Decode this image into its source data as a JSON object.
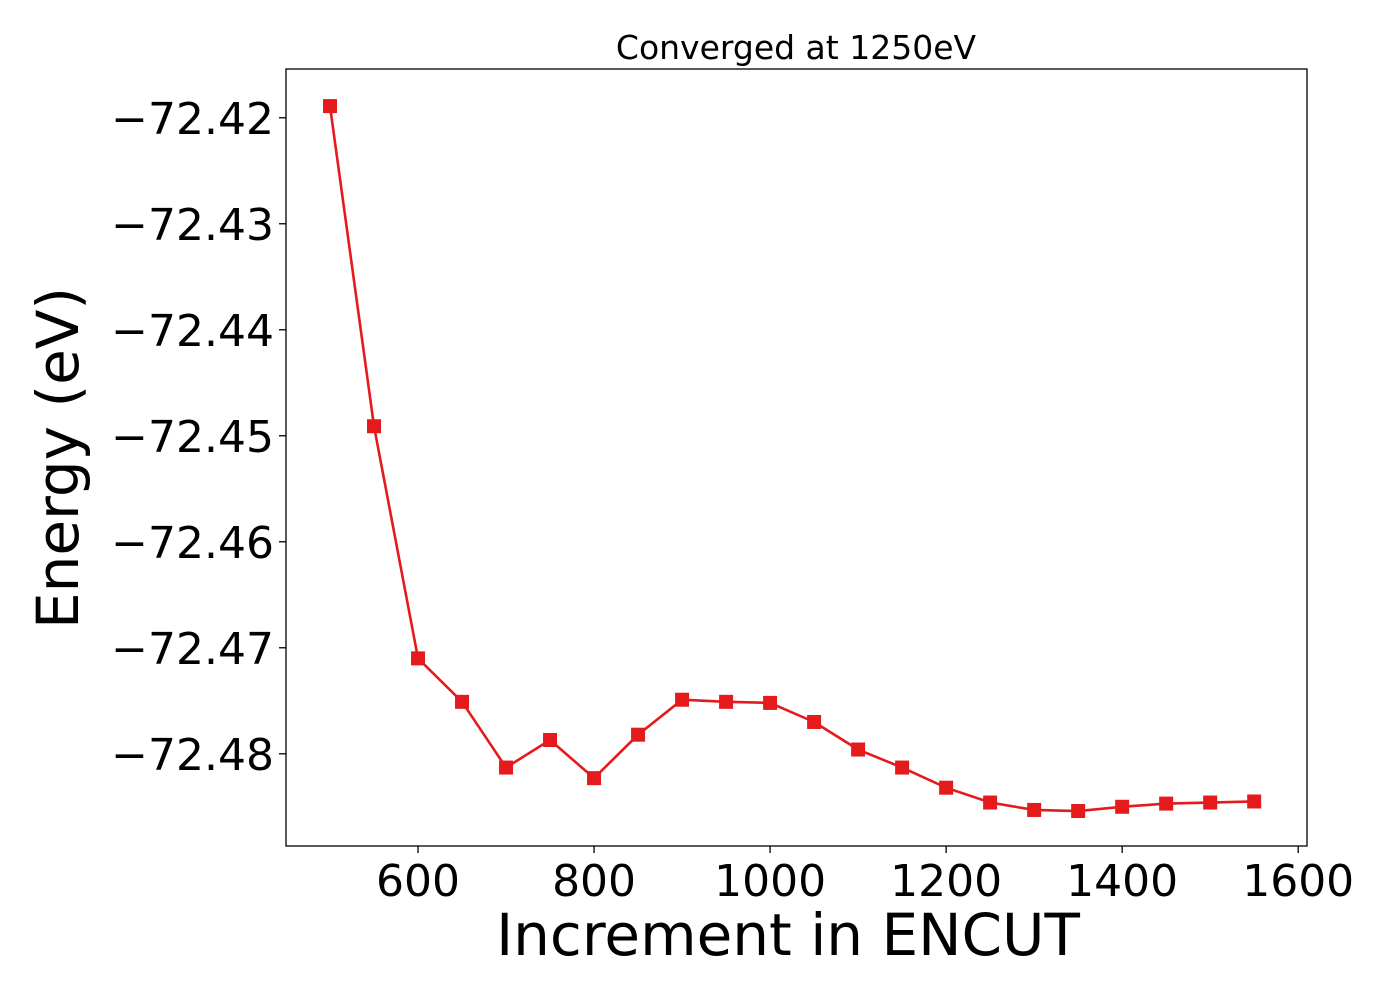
{
  "chart_data": {
    "type": "line",
    "title": "Converged at 1250eV",
    "xlabel": "Increment in ENCUT",
    "ylabel": "Energy (eV)",
    "xlim": [
      450,
      1610
    ],
    "ylim": [
      -72.4887,
      -72.4154
    ],
    "xticks": [
      600,
      800,
      1000,
      1200,
      1400,
      1600
    ],
    "xtick_labels": [
      "600",
      "800",
      "1000",
      "1200",
      "1400",
      "1600"
    ],
    "yticks": [
      -72.42,
      -72.43,
      -72.44,
      -72.45,
      -72.46,
      -72.47,
      -72.48
    ],
    "ytick_labels": [
      "−72.42",
      "−72.43",
      "−72.44",
      "−72.45",
      "−72.46",
      "−72.47",
      "−72.48"
    ],
    "grid": false,
    "color": "#e41a1c",
    "marker": "square",
    "series": [
      {
        "x": [
          500,
          550,
          600,
          650,
          700,
          750,
          800,
          850,
          900,
          950,
          1000,
          1050,
          1100,
          1150,
          1200,
          1250,
          1300,
          1350,
          1400,
          1450,
          1500,
          1550
        ],
        "y": [
          -72.4189,
          -72.4491,
          -72.471,
          -72.4751,
          -72.4813,
          -72.4787,
          -72.4823,
          -72.4782,
          -72.4749,
          -72.4751,
          -72.4752,
          -72.477,
          -72.4796,
          -72.4813,
          -72.4832,
          -72.4846,
          -72.4853,
          -72.4854,
          -72.485,
          -72.4847,
          -72.4846,
          -72.4845
        ]
      }
    ]
  }
}
